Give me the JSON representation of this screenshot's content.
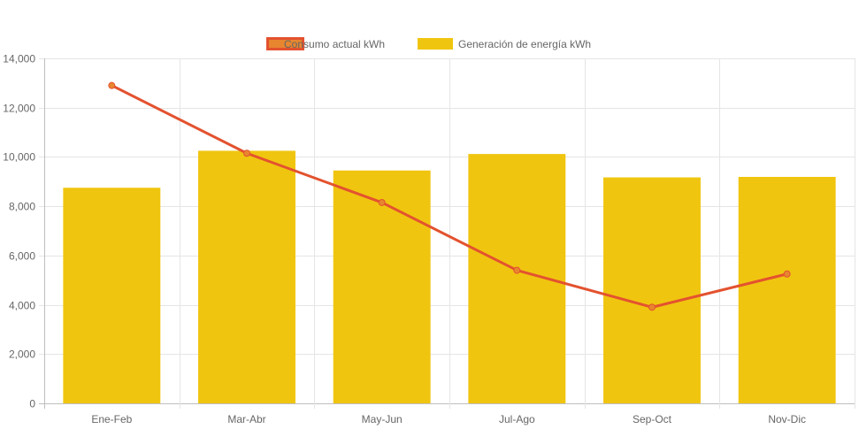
{
  "chart_data": {
    "type": "bar",
    "categories": [
      "Ene-Feb",
      "Mar-Abr",
      "May-Jun",
      "Jul-Ago",
      "Sep-Oct",
      "Nov-Dic"
    ],
    "series": [
      {
        "name": "Consumo actual kWh",
        "type": "line",
        "values": [
          12900,
          10150,
          8150,
          5400,
          3900,
          5250
        ],
        "color": "#e3522f",
        "point_color": "#e8862f"
      },
      {
        "name": "Generación de energía kWh",
        "type": "bar",
        "values": [
          8750,
          10250,
          9450,
          10120,
          9170,
          9190
        ],
        "color": "#f0c50f"
      }
    ],
    "ylim": [
      0,
      14000
    ],
    "yticks": [
      0,
      2000,
      4000,
      6000,
      8000,
      10000,
      12000,
      14000
    ],
    "ytick_labels": [
      "0",
      "2,000",
      "4,000",
      "6,000",
      "8,000",
      "10,000",
      "12,000",
      "14,000"
    ],
    "grid": true,
    "legend_position": "top-center",
    "title": "",
    "xlabel": "",
    "ylabel": ""
  }
}
